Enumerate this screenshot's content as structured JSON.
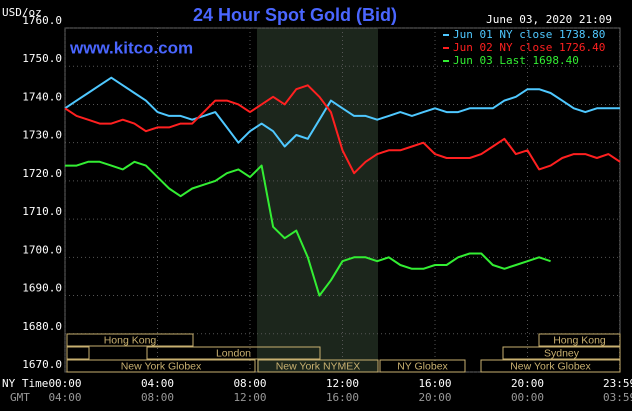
{
  "chart_data": {
    "type": "line",
    "title": "24 Hour Spot Gold (Bid)",
    "unit": "USD/oz",
    "site": "www.kitco.com",
    "timestamp": "June 03, 2020 21:09",
    "x_axis_label": "NY Time",
    "x2_axis_label": "GMT",
    "legend": "top-right",
    "grid": true,
    "x": [
      0,
      0.5,
      1,
      1.5,
      2,
      2.5,
      3,
      3.5,
      4,
      4.5,
      5,
      5.5,
      6,
      6.5,
      7,
      7.5,
      8,
      8.5,
      9,
      9.5,
      10,
      10.5,
      11,
      11.5,
      12,
      12.5,
      13,
      13.5,
      14,
      14.5,
      15,
      15.5,
      16,
      16.5,
      17,
      17.5,
      18,
      18.5,
      19,
      19.5,
      20,
      20.5,
      21,
      21.5,
      22,
      22.5,
      23,
      23.5,
      24
    ],
    "xlim": [
      0,
      24
    ],
    "xticks": [
      {
        "value": 0,
        "label": "00:00"
      },
      {
        "value": 4,
        "label": "04:00"
      },
      {
        "value": 8,
        "label": "08:00"
      },
      {
        "value": 12,
        "label": "12:00"
      },
      {
        "value": 16,
        "label": "16:00"
      },
      {
        "value": 20,
        "label": "20:00"
      },
      {
        "value": 23.9833,
        "label": "23:59"
      }
    ],
    "x2ticks": [
      {
        "value": 0,
        "label": "04:00"
      },
      {
        "value": 4,
        "label": "08:00"
      },
      {
        "value": 8,
        "label": "12:00"
      },
      {
        "value": 12,
        "label": "16:00"
      },
      {
        "value": 16,
        "label": "20:00"
      },
      {
        "value": 20,
        "label": "00:00"
      },
      {
        "value": 23.9833,
        "label": "03:59"
      }
    ],
    "ylim": [
      1670,
      1760
    ],
    "yticks": [
      {
        "value": 1670,
        "label": "1670.0"
      },
      {
        "value": 1680,
        "label": "1680.0"
      },
      {
        "value": 1690,
        "label": "1690.0"
      },
      {
        "value": 1700,
        "label": "1700.0"
      },
      {
        "value": 1710,
        "label": "1710.0"
      },
      {
        "value": 1720,
        "label": "1720.0"
      },
      {
        "value": 1730,
        "label": "1730.0"
      },
      {
        "value": 1740,
        "label": "1740.0"
      },
      {
        "value": 1750,
        "label": "1750.0"
      },
      {
        "value": 1760,
        "label": "1760.0"
      }
    ],
    "sessions": [
      "Hong Kong",
      "London",
      "New York Globex",
      "New York NYMEX",
      "NY Globex",
      "Hong Kong",
      "Sydney",
      "New York Globex"
    ],
    "series": [
      {
        "name": "Jun 01 NY close 1738.80",
        "color": "#4fc8ff",
        "values": [
          1739,
          1741,
          1743,
          1745,
          1747,
          1745,
          1743,
          1741,
          1738,
          1737,
          1737,
          1736,
          1737,
          1738,
          1734,
          1730,
          1733,
          1735,
          1733,
          1729,
          1732,
          1731,
          1736,
          1741,
          1739,
          1737,
          1737,
          1736,
          1737,
          1738,
          1737,
          1738,
          1739,
          1738,
          1738,
          1739,
          1739,
          1739,
          1741,
          1742,
          1744,
          1744,
          1743,
          1741,
          1739,
          1738,
          1739,
          1739,
          1739
        ]
      },
      {
        "name": "Jun 02 NY close 1726.40",
        "color": "#ff2020",
        "values": [
          1739,
          1737,
          1736,
          1735,
          1735,
          1736,
          1735,
          1733,
          1734,
          1734,
          1735,
          1735,
          1738,
          1741,
          1741,
          1740,
          1738,
          1740,
          1742,
          1740,
          1744,
          1745,
          1742,
          1738,
          1728,
          1722,
          1725,
          1727,
          1728,
          1728,
          1729,
          1730,
          1727,
          1726,
          1726,
          1726,
          1727,
          1729,
          1731,
          1727,
          1728,
          1723,
          1724,
          1726,
          1727,
          1727,
          1726,
          1727,
          1725
        ]
      },
      {
        "name": "Jun 03 Last 1698.40",
        "color": "#33ee33",
        "values": [
          1724,
          1724,
          1725,
          1725,
          1724,
          1723,
          1725,
          1724,
          1721,
          1718,
          1716,
          1718,
          1719,
          1720,
          1722,
          1723,
          1721,
          1724,
          1708,
          1705,
          1707,
          1700,
          1690,
          1694,
          1699,
          1700,
          1700,
          1699,
          1700,
          1698,
          1697,
          1697,
          1698,
          1698,
          1700,
          1701,
          1701,
          1698,
          1697,
          1698,
          1699,
          1700,
          1699,
          null,
          null,
          null,
          null,
          null,
          null
        ]
      }
    ]
  }
}
